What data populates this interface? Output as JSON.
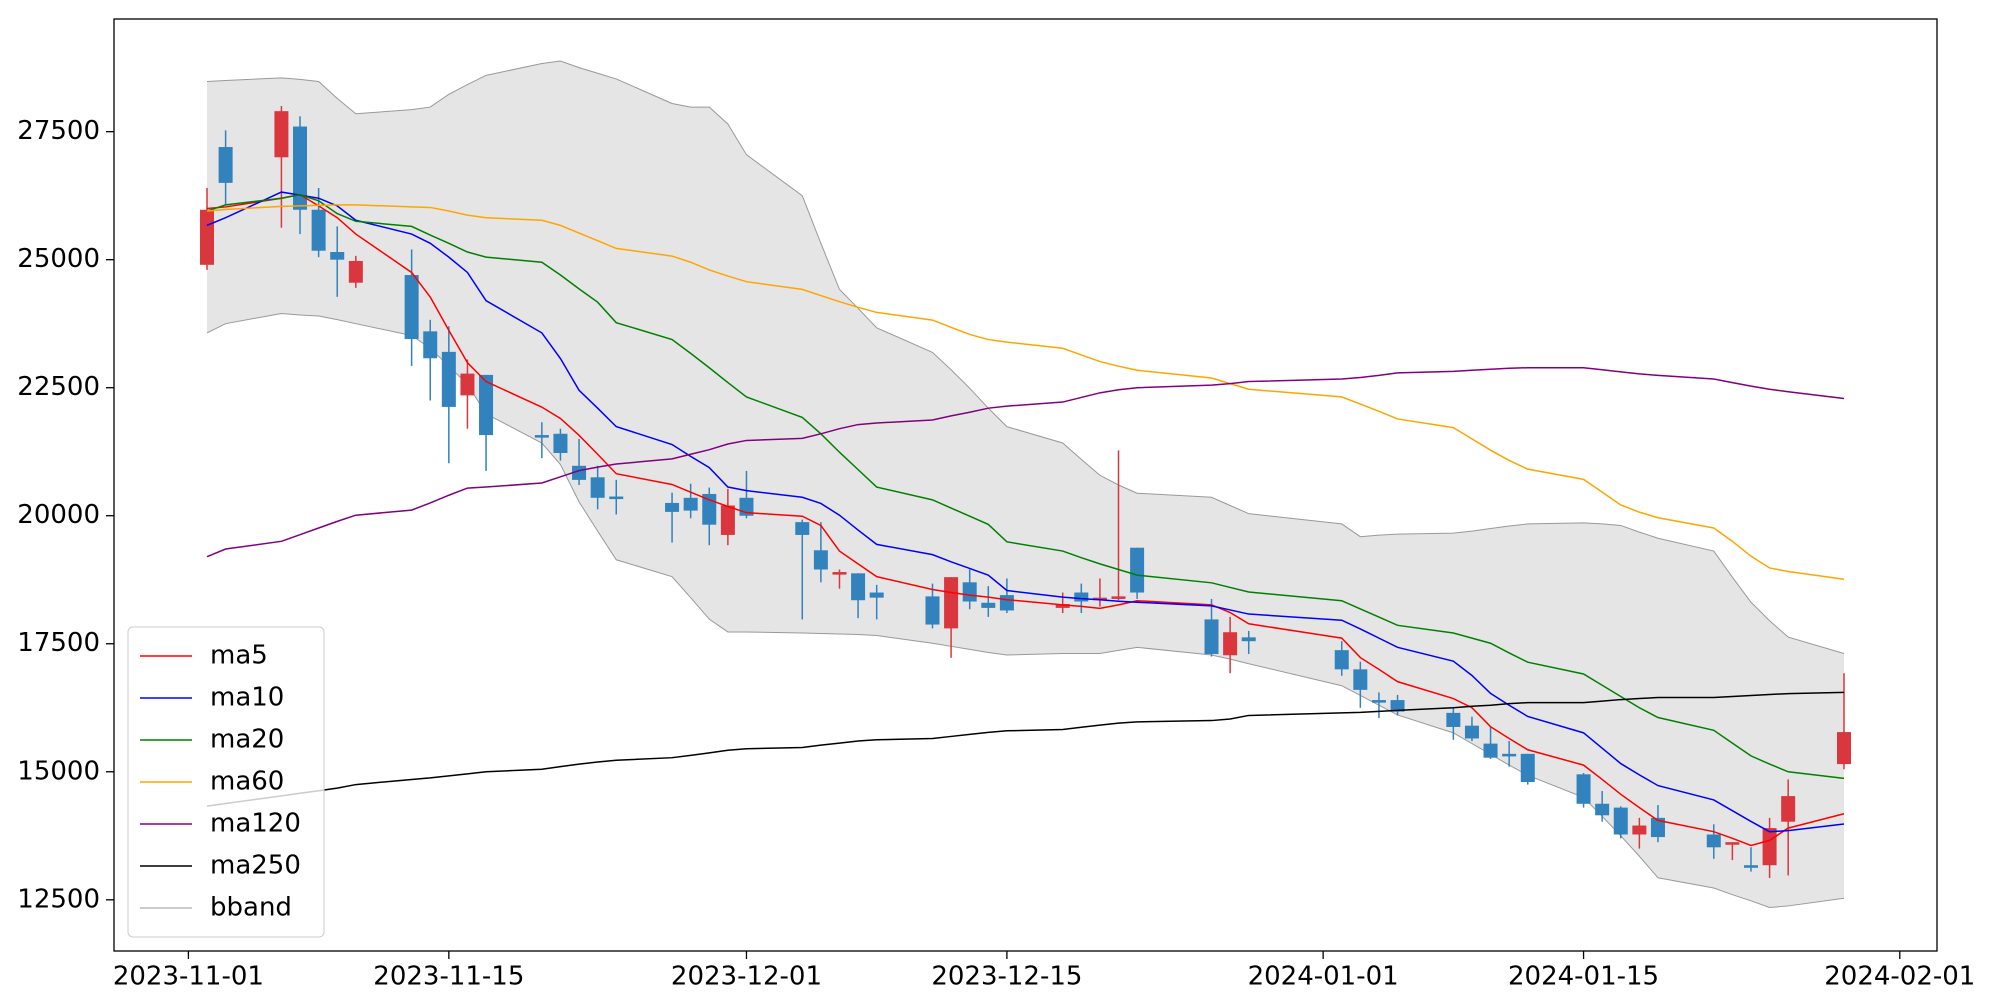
{
  "chart_data": {
    "type": "candlestick",
    "x": [
      "2023-11-02",
      "2023-11-03",
      "2023-11-06",
      "2023-11-07",
      "2023-11-08",
      "2023-11-09",
      "2023-11-10",
      "2023-11-13",
      "2023-11-14",
      "2023-11-15",
      "2023-11-16",
      "2023-11-17",
      "2023-11-20",
      "2023-11-21",
      "2023-11-22",
      "2023-11-23",
      "2023-11-24",
      "2023-11-27",
      "2023-11-28",
      "2023-11-29",
      "2023-11-30",
      "2023-12-01",
      "2023-12-04",
      "2023-12-05",
      "2023-12-06",
      "2023-12-07",
      "2023-12-08",
      "2023-12-11",
      "2023-12-12",
      "2023-12-13",
      "2023-12-14",
      "2023-12-15",
      "2023-12-18",
      "2023-12-19",
      "2023-12-20",
      "2023-12-21",
      "2023-12-22",
      "2023-12-26",
      "2023-12-27",
      "2023-12-28",
      "2024-01-02",
      "2024-01-03",
      "2024-01-04",
      "2024-01-05",
      "2024-01-08",
      "2024-01-09",
      "2024-01-10",
      "2024-01-11",
      "2024-01-12",
      "2024-01-15",
      "2024-01-16",
      "2024-01-17",
      "2024-01-18",
      "2024-01-19",
      "2024-01-22",
      "2024-01-23",
      "2024-01-24",
      "2024-01-25",
      "2024-01-26",
      "2024-01-29"
    ],
    "xlim": [
      "2023-10-28",
      "2024-02-03"
    ],
    "xticks": [
      "2023-11-01",
      "2023-11-15",
      "2023-12-01",
      "2023-12-15",
      "2024-01-01",
      "2024-01-15",
      "2024-02-01"
    ],
    "ylim": [
      11500,
      29700
    ],
    "yticks": [
      12500,
      15000,
      17500,
      20000,
      22500,
      25000,
      27500
    ],
    "grid": false,
    "legend": "lower left",
    "up_color": "#d9363e",
    "down_color": "#3182bd",
    "candles": {
      "open": [
        24900,
        27200,
        27000,
        27600,
        25975,
        25150,
        24550,
        24700,
        23600,
        23200,
        22350,
        22750,
        21575,
        21600,
        20975,
        20750,
        20375,
        20250,
        20350,
        20425,
        19625,
        20350,
        19875,
        19325,
        18850,
        18875,
        18500,
        18425,
        17800,
        18700,
        18300,
        18450,
        18200,
        18500,
        18350,
        18375,
        19375,
        17975,
        17275,
        17625,
        17375,
        17000,
        16400,
        16400,
        16150,
        15900,
        15550,
        15350,
        15350,
        14950,
        14375,
        14300,
        13775,
        14100,
        13775,
        13575,
        13175,
        13175,
        14025,
        15150
      ],
      "high": [
        26400,
        27525,
        28000,
        27800,
        26400,
        25650,
        25075,
        25200,
        23825,
        23700,
        23050,
        22750,
        21825,
        21700,
        21500,
        20975,
        20700,
        20450,
        20625,
        20550,
        20525,
        20875,
        19925,
        19875,
        18950,
        18875,
        18650,
        18675,
        18800,
        18950,
        18625,
        18775,
        18500,
        18675,
        18775,
        21275,
        19375,
        18375,
        18025,
        17750,
        17550,
        17150,
        16550,
        16500,
        16250,
        16075,
        15875,
        15600,
        15350,
        14975,
        14625,
        14325,
        14100,
        14350,
        13975,
        13625,
        13525,
        14100,
        14850,
        16925
      ],
      "low": [
        24800,
        26075,
        25625,
        25500,
        25050,
        24275,
        24450,
        22925,
        22250,
        21025,
        21700,
        20875,
        21125,
        21075,
        20600,
        20125,
        20025,
        19475,
        19950,
        19425,
        19425,
        19950,
        17975,
        18700,
        18575,
        18000,
        17975,
        17800,
        17225,
        18175,
        18025,
        18100,
        18100,
        18100,
        18225,
        18350,
        18375,
        17250,
        16925,
        17300,
        16875,
        16250,
        16050,
        16100,
        15625,
        15600,
        15250,
        15100,
        14750,
        14300,
        14025,
        13700,
        13500,
        13625,
        13300,
        13275,
        13050,
        12925,
        12975,
        15050
      ],
      "close": [
        25975,
        26500,
        27900,
        25975,
        25175,
        25000,
        24975,
        23450,
        23075,
        22125,
        22775,
        21575,
        21525,
        21225,
        20700,
        20350,
        20325,
        20075,
        20100,
        19825,
        20200,
        20000,
        19625,
        18950,
        18900,
        18350,
        18400,
        17875,
        18800,
        18325,
        18200,
        18150,
        18275,
        18325,
        18400,
        18425,
        18500,
        17300,
        17725,
        17550,
        17000,
        16600,
        16350,
        16175,
        15875,
        15650,
        15275,
        15300,
        14800,
        14375,
        14150,
        13775,
        13950,
        13725,
        13525,
        13625,
        13125,
        13900,
        14525,
        15775
      ]
    },
    "series": [
      {
        "name": "ma5",
        "color": "#ff0000",
        "values": [
          26000,
          26030,
          26200,
          26270,
          26050,
          25820,
          25500,
          24750,
          24270,
          23620,
          22990,
          22620,
          22120,
          21900,
          21570,
          21200,
          20820,
          20610,
          20460,
          20310,
          20180,
          20060,
          19990,
          19810,
          19310,
          19060,
          18810,
          18560,
          18500,
          18450,
          18410,
          18360,
          18260,
          18230,
          18190,
          18260,
          18340,
          18260,
          18110,
          17890,
          17610,
          17230,
          17000,
          16760,
          16430,
          16250,
          15880,
          15650,
          15430,
          15130,
          14850,
          14560,
          14300,
          14050,
          13830,
          13700,
          13560,
          13660,
          13900,
          14180
        ]
      },
      {
        "name": "ma10",
        "color": "#0000ff",
        "values": [
          25670,
          25820,
          26320,
          26260,
          26200,
          26050,
          25770,
          25500,
          25320,
          25050,
          24750,
          24200,
          23570,
          23070,
          22450,
          22100,
          21740,
          21390,
          21160,
          20940,
          20560,
          20490,
          20360,
          20240,
          20010,
          19720,
          19440,
          19240,
          19100,
          18970,
          18840,
          18540,
          18410,
          18380,
          18360,
          18330,
          18310,
          18240,
          18160,
          18080,
          17960,
          17790,
          17610,
          17430,
          17160,
          16880,
          16530,
          16300,
          16080,
          15760,
          15460,
          15160,
          14940,
          14730,
          14450,
          14240,
          14030,
          13830,
          13850,
          13980
        ]
      },
      {
        "name": "ma20",
        "color": "#008000",
        "values": [
          25950,
          26070,
          26200,
          26270,
          26150,
          25900,
          25750,
          25650,
          25480,
          25320,
          25150,
          25050,
          24950,
          24700,
          24430,
          24170,
          23770,
          23440,
          23170,
          22890,
          22600,
          22320,
          21920,
          21600,
          21240,
          20900,
          20560,
          20310,
          20150,
          19990,
          19830,
          19490,
          19310,
          19180,
          19060,
          18950,
          18840,
          18690,
          18600,
          18510,
          18340,
          18180,
          18020,
          17860,
          17710,
          17610,
          17510,
          17320,
          17140,
          16910,
          16690,
          16470,
          16250,
          16060,
          15810,
          15560,
          15310,
          15150,
          15000,
          14870
        ]
      },
      {
        "name": "ma60",
        "color": "#ffa500",
        "values": [
          25950,
          25980,
          26040,
          26050,
          26060,
          26070,
          26070,
          26030,
          26020,
          25950,
          25870,
          25820,
          25770,
          25670,
          25520,
          25370,
          25220,
          25070,
          24950,
          24800,
          24680,
          24570,
          24420,
          24300,
          24180,
          24070,
          23970,
          23820,
          23680,
          23540,
          23440,
          23390,
          23270,
          23140,
          23010,
          22920,
          22840,
          22690,
          22580,
          22470,
          22320,
          22180,
          22040,
          21890,
          21720,
          21500,
          21280,
          21080,
          20910,
          20710,
          20460,
          20210,
          20070,
          19960,
          19760,
          19500,
          19210,
          18980,
          18910,
          18760
        ]
      },
      {
        "name": "ma120",
        "color": "#800080",
        "values": [
          19200,
          19350,
          19500,
          19630,
          19760,
          19890,
          20010,
          20110,
          20250,
          20400,
          20540,
          20560,
          20640,
          20760,
          20880,
          20950,
          21010,
          21110,
          21200,
          21290,
          21400,
          21470,
          21510,
          21600,
          21700,
          21780,
          21810,
          21870,
          21950,
          22020,
          22100,
          22140,
          22220,
          22310,
          22400,
          22460,
          22500,
          22550,
          22580,
          22620,
          22670,
          22700,
          22740,
          22790,
          22820,
          22840,
          22860,
          22880,
          22890,
          22890,
          22850,
          22810,
          22770,
          22740,
          22670,
          22600,
          22530,
          22470,
          22420,
          22290
        ]
      },
      {
        "name": "ma250",
        "color": "#000000",
        "values": [
          14330,
          14380,
          14530,
          14580,
          14630,
          14680,
          14750,
          14850,
          14880,
          14920,
          14960,
          15000,
          15050,
          15100,
          15150,
          15190,
          15225,
          15275,
          15320,
          15370,
          15420,
          15450,
          15475,
          15520,
          15560,
          15600,
          15625,
          15650,
          15690,
          15730,
          15770,
          15800,
          15825,
          15870,
          15910,
          15950,
          15975,
          16000,
          16030,
          16100,
          16150,
          16160,
          16180,
          16200,
          16250,
          16280,
          16300,
          16330,
          16350,
          16350,
          16380,
          16410,
          16430,
          16450,
          16450,
          16470,
          16490,
          16510,
          16525,
          16550
        ]
      }
    ],
    "bband": {
      "name": "bband",
      "color": "#999999",
      "fill": "#e5e5e5",
      "upper": [
        28480,
        28500,
        28550,
        28520,
        28480,
        28150,
        27850,
        27930,
        27980,
        28230,
        28420,
        28600,
        28830,
        28880,
        28750,
        28640,
        28530,
        28050,
        27980,
        27980,
        27650,
        27050,
        26250,
        25320,
        24420,
        24050,
        23670,
        23190,
        22850,
        22490,
        22100,
        21740,
        21420,
        21100,
        20790,
        20600,
        20440,
        20360,
        20200,
        20040,
        19840,
        19590,
        19620,
        19640,
        19660,
        19700,
        19750,
        19800,
        19840,
        19860,
        19840,
        19810,
        19680,
        19560,
        19310,
        18800,
        18310,
        17950,
        17630,
        17310
      ],
      "lower": [
        23570,
        23750,
        23950,
        23920,
        23900,
        23830,
        23750,
        23520,
        23270,
        22920,
        22570,
        21990,
        21420,
        21000,
        20270,
        19700,
        19140,
        18810,
        18400,
        17980,
        17730,
        17730,
        17710,
        17700,
        17690,
        17680,
        17660,
        17510,
        17450,
        17390,
        17330,
        17280,
        17310,
        17310,
        17310,
        17370,
        17430,
        17280,
        17200,
        17110,
        16680,
        16490,
        16300,
        16110,
        15760,
        15550,
        15340,
        15130,
        14930,
        14500,
        14130,
        13750,
        13350,
        12930,
        12730,
        12600,
        12480,
        12350,
        12380,
        12530
      ]
    }
  }
}
